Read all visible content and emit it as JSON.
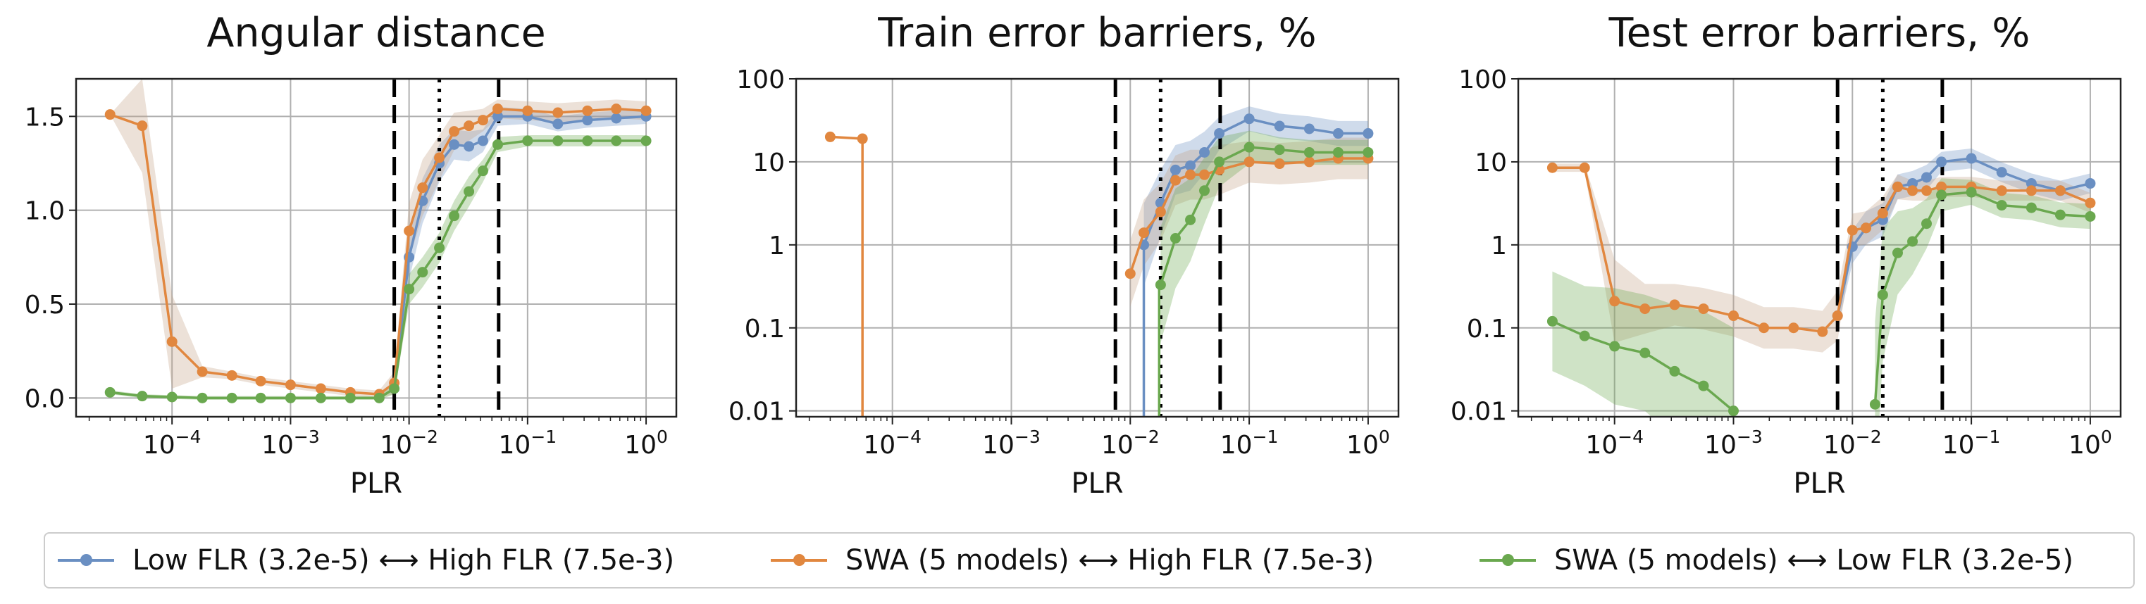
{
  "colors": {
    "blue": "#6a8fc2",
    "orange": "#e1873f",
    "green": "#6aa84f",
    "brown": "#c3a187"
  },
  "legend": [
    {
      "label": "Low FLR (3.2e-5) ⟷ High FLR (7.5e-3)",
      "color": "#6a8fc2"
    },
    {
      "label": "SWA (5 models) ⟷ High FLR (7.5e-3)",
      "color": "#e1873f"
    },
    {
      "label": "SWA (5 models) ⟷ Low FLR (3.2e-5)",
      "color": "#6aa84f"
    }
  ],
  "chart_data": [
    {
      "type": "line",
      "title": "Angular distance",
      "xlabel": "PLR",
      "xscale": "log",
      "yscale": "linear",
      "xlim": [
        1.55e-05,
        1.8
      ],
      "ylim": [
        -0.1,
        1.7
      ],
      "yticks": [
        0.0,
        0.5,
        1.0,
        1.5
      ],
      "ytick_labels": [
        "0.0",
        "0.5",
        "1.0",
        "1.5"
      ],
      "xticks": [
        0.0001,
        0.001,
        0.01,
        0.1,
        1
      ],
      "xtick_labels": [
        [
          "10",
          "−4"
        ],
        [
          "10",
          "−3"
        ],
        [
          "10",
          "−2"
        ],
        [
          "10",
          "−1"
        ],
        [
          "10",
          "0"
        ]
      ],
      "vlines": [
        {
          "x": 0.0075,
          "style": "dashed"
        },
        {
          "x": 0.018,
          "style": "dotted"
        },
        {
          "x": 0.057,
          "style": "dashed"
        }
      ],
      "series": [
        {
          "name": "Low FLR (3.2e-5) ⟷ High FLR (7.5e-3)",
          "color": "#6a8fc2",
          "x": [
            0.0075,
            0.01,
            0.013,
            0.018,
            0.024,
            0.032,
            0.042,
            0.056,
            0.1,
            0.18,
            0.32,
            0.56,
            1.0
          ],
          "y": [
            0.05,
            0.75,
            1.05,
            1.25,
            1.35,
            1.34,
            1.37,
            1.5,
            1.5,
            1.46,
            1.48,
            1.49,
            1.5
          ],
          "band": [
            0.05,
            0.12,
            0.12,
            0.1,
            0.08,
            0.08,
            0.06,
            0.05,
            0.04,
            0.04,
            0.04,
            0.04,
            0.04
          ]
        },
        {
          "name": "SWA (5 models) ⟷ High FLR (7.5e-3)",
          "color": "#e1873f",
          "x": [
            3e-05,
            5.6e-05,
            0.0001,
            0.00018,
            0.00032,
            0.00056,
            0.001,
            0.0018,
            0.0032,
            0.0056,
            0.0075,
            0.01,
            0.013,
            0.018,
            0.024,
            0.032,
            0.042,
            0.056,
            0.1,
            0.18,
            0.32,
            0.56,
            1.0
          ],
          "y": [
            1.51,
            1.45,
            0.3,
            0.14,
            0.12,
            0.09,
            0.07,
            0.05,
            0.03,
            0.02,
            0.08,
            0.89,
            1.12,
            1.28,
            1.42,
            1.45,
            1.48,
            1.54,
            1.53,
            1.52,
            1.53,
            1.54,
            1.53
          ],
          "band": [
            0.0,
            0.25,
            0.25,
            0.03,
            0.02,
            0.02,
            0.02,
            0.02,
            0.02,
            0.02,
            0.06,
            0.15,
            0.15,
            0.12,
            0.1,
            0.08,
            0.06,
            0.05,
            0.05,
            0.05,
            0.05,
            0.05,
            0.05
          ],
          "band_color": "#c3a187"
        },
        {
          "name": "SWA (5 models) ⟷ Low FLR (3.2e-5)",
          "color": "#6aa84f",
          "x": [
            3e-05,
            5.6e-05,
            0.0001,
            0.00018,
            0.00032,
            0.00056,
            0.001,
            0.0018,
            0.0032,
            0.0056,
            0.0075,
            0.01,
            0.013,
            0.018,
            0.024,
            0.032,
            0.042,
            0.056,
            0.1,
            0.18,
            0.32,
            0.56,
            1.0
          ],
          "y": [
            0.03,
            0.01,
            0.005,
            0.0,
            0.0,
            0.0,
            0.0,
            0.0,
            0.0,
            0.0,
            0.05,
            0.58,
            0.67,
            0.8,
            0.97,
            1.1,
            1.21,
            1.35,
            1.37,
            1.37,
            1.37,
            1.37,
            1.37
          ],
          "band": [
            0.01,
            0.01,
            0.01,
            0.01,
            0.01,
            0.01,
            0.01,
            0.01,
            0.01,
            0.01,
            0.03,
            0.08,
            0.08,
            0.08,
            0.08,
            0.08,
            0.06,
            0.04,
            0.03,
            0.03,
            0.03,
            0.03,
            0.03
          ]
        }
      ]
    },
    {
      "type": "line",
      "title": "Train error barriers, %",
      "xlabel": "PLR",
      "xscale": "log",
      "yscale": "log",
      "xlim": [
        1.55e-05,
        1.8
      ],
      "ylim": [
        0.0085,
        100
      ],
      "yticks": [
        0.01,
        0.1,
        1,
        10,
        100
      ],
      "ytick_labels": [
        "0.01",
        "0.1",
        "1",
        "10",
        "100"
      ],
      "xticks": [
        0.0001,
        0.001,
        0.01,
        0.1,
        1
      ],
      "xtick_labels": [
        [
          "10",
          "−4"
        ],
        [
          "10",
          "−3"
        ],
        [
          "10",
          "−2"
        ],
        [
          "10",
          "−1"
        ],
        [
          "10",
          "0"
        ]
      ],
      "vlines": [
        {
          "x": 0.0075,
          "style": "dashed"
        },
        {
          "x": 0.018,
          "style": "dotted"
        },
        {
          "x": 0.057,
          "style": "dashed"
        }
      ],
      "series": [
        {
          "name": "Low FLR (3.2e-5) ⟷ High FLR (7.5e-3)",
          "color": "#6a8fc2",
          "x": [
            0.013,
            0.018,
            0.024,
            0.032,
            0.042,
            0.056,
            0.1,
            0.18,
            0.32,
            0.56,
            1.0
          ],
          "y": [
            1.0,
            3.2,
            8.0,
            9.0,
            13.0,
            22.0,
            33.0,
            27.0,
            25.0,
            22.0,
            22.0
          ],
          "band": [
            0.5,
            0.4,
            0.3,
            0.3,
            0.25,
            0.2,
            0.15,
            0.15,
            0.15,
            0.15,
            0.15
          ],
          "drop_from_x": 0.013
        },
        {
          "name": "SWA (5 models) ⟷ High FLR (7.5e-3)",
          "color": "#e1873f",
          "x": [
            3e-05,
            5.6e-05,
            0.01,
            0.013,
            0.018,
            0.024,
            0.032,
            0.042,
            0.056,
            0.1,
            0.18,
            0.32,
            0.56,
            1.0
          ],
          "y": [
            20.0,
            19.0,
            0.45,
            1.4,
            2.5,
            6.0,
            7.0,
            7.0,
            8.0,
            10.0,
            9.5,
            10.0,
            11.0,
            11.0
          ],
          "band": [
            0.0,
            0.0,
            0.4,
            0.4,
            0.35,
            0.3,
            0.3,
            0.3,
            0.3,
            0.25,
            0.25,
            0.25,
            0.25,
            0.25
          ],
          "band_color": "#c3a187",
          "drop_after_index": 1,
          "gap_after_index": 1
        },
        {
          "name": "SWA (5 models) ⟷ Low FLR (3.2e-5)",
          "color": "#6aa84f",
          "x": [
            0.018,
            0.024,
            0.032,
            0.042,
            0.056,
            0.1,
            0.18,
            0.32,
            0.56,
            1.0
          ],
          "y": [
            0.33,
            1.2,
            2.0,
            4.5,
            10.0,
            15.0,
            14.0,
            13.0,
            13.0,
            13.0
          ],
          "band": [
            0.7,
            0.6,
            0.5,
            0.4,
            0.3,
            0.2,
            0.15,
            0.15,
            0.15,
            0.15
          ],
          "drop_from_x": 0.0175
        }
      ]
    },
    {
      "type": "line",
      "title": "Test error barriers, %",
      "xlabel": "PLR",
      "xscale": "log",
      "yscale": "log",
      "xlim": [
        1.55e-05,
        1.8
      ],
      "ylim": [
        0.0085,
        100
      ],
      "yticks": [
        0.01,
        0.1,
        1,
        10,
        100
      ],
      "ytick_labels": [
        "0.01",
        "0.1",
        "1",
        "10",
        "100"
      ],
      "xticks": [
        0.0001,
        0.001,
        0.01,
        0.1,
        1
      ],
      "xtick_labels": [
        [
          "10",
          "−4"
        ],
        [
          "10",
          "−3"
        ],
        [
          "10",
          "−2"
        ],
        [
          "10",
          "−1"
        ],
        [
          "10",
          "0"
        ]
      ],
      "vlines": [
        {
          "x": 0.0075,
          "style": "dashed"
        },
        {
          "x": 0.018,
          "style": "dotted"
        },
        {
          "x": 0.057,
          "style": "dashed"
        }
      ],
      "series": [
        {
          "name": "Low FLR (3.2e-5) ⟷ High FLR (7.5e-3)",
          "color": "#6a8fc2",
          "x": [
            0.0075,
            0.01,
            0.013,
            0.018,
            0.024,
            0.032,
            0.042,
            0.056,
            0.1,
            0.18,
            0.32,
            0.56,
            1.0
          ],
          "y": [
            0.14,
            0.95,
            1.6,
            2.0,
            5.0,
            5.5,
            6.5,
            10.0,
            11.0,
            7.5,
            5.5,
            4.5,
            5.5
          ],
          "band": [
            0.15,
            0.2,
            0.2,
            0.2,
            0.15,
            0.15,
            0.15,
            0.12,
            0.12,
            0.12,
            0.12,
            0.12,
            0.12
          ]
        },
        {
          "name": "SWA (5 models) ⟷ High FLR (7.5e-3)",
          "color": "#e1873f",
          "x": [
            3e-05,
            5.6e-05,
            0.0001,
            0.00018,
            0.00032,
            0.00056,
            0.001,
            0.0018,
            0.0032,
            0.0056,
            0.0075,
            0.01,
            0.013,
            0.018,
            0.024,
            0.032,
            0.042,
            0.056,
            0.1,
            0.18,
            0.32,
            0.56,
            1.0
          ],
          "y": [
            8.5,
            8.5,
            0.21,
            0.17,
            0.19,
            0.17,
            0.14,
            0.1,
            0.1,
            0.09,
            0.14,
            1.5,
            1.6,
            2.4,
            5.0,
            4.5,
            4.5,
            5.0,
            5.0,
            4.5,
            4.5,
            4.5,
            3.2
          ],
          "band": [
            0.05,
            0.05,
            0.5,
            0.3,
            0.25,
            0.25,
            0.25,
            0.25,
            0.25,
            0.25,
            0.3,
            0.2,
            0.2,
            0.2,
            0.15,
            0.12,
            0.12,
            0.12,
            0.12,
            0.12,
            0.12,
            0.12,
            0.12
          ],
          "band_color": "#c3a187"
        },
        {
          "name": "SWA (5 models) ⟷ Low FLR (3.2e-5)",
          "color": "#6aa84f",
          "x": [
            3e-05,
            5.6e-05,
            0.0001,
            0.00018,
            0.00032,
            0.00056,
            0.001,
            0.0155,
            0.018,
            0.024,
            0.032,
            0.042,
            0.056,
            0.1,
            0.18,
            0.32,
            0.56,
            1.0
          ],
          "y": [
            0.12,
            0.08,
            0.06,
            0.05,
            0.03,
            0.02,
            0.01,
            0.012,
            0.25,
            0.8,
            1.1,
            1.8,
            4.0,
            4.3,
            3.0,
            2.8,
            2.3,
            2.2
          ],
          "band": [
            0.6,
            0.6,
            0.7,
            0.7,
            0.8,
            0.9,
            1.0,
            1.0,
            0.8,
            0.5,
            0.4,
            0.3,
            0.2,
            0.15,
            0.15,
            0.15,
            0.15,
            0.15
          ],
          "gap_after_index": 6
        }
      ]
    }
  ]
}
